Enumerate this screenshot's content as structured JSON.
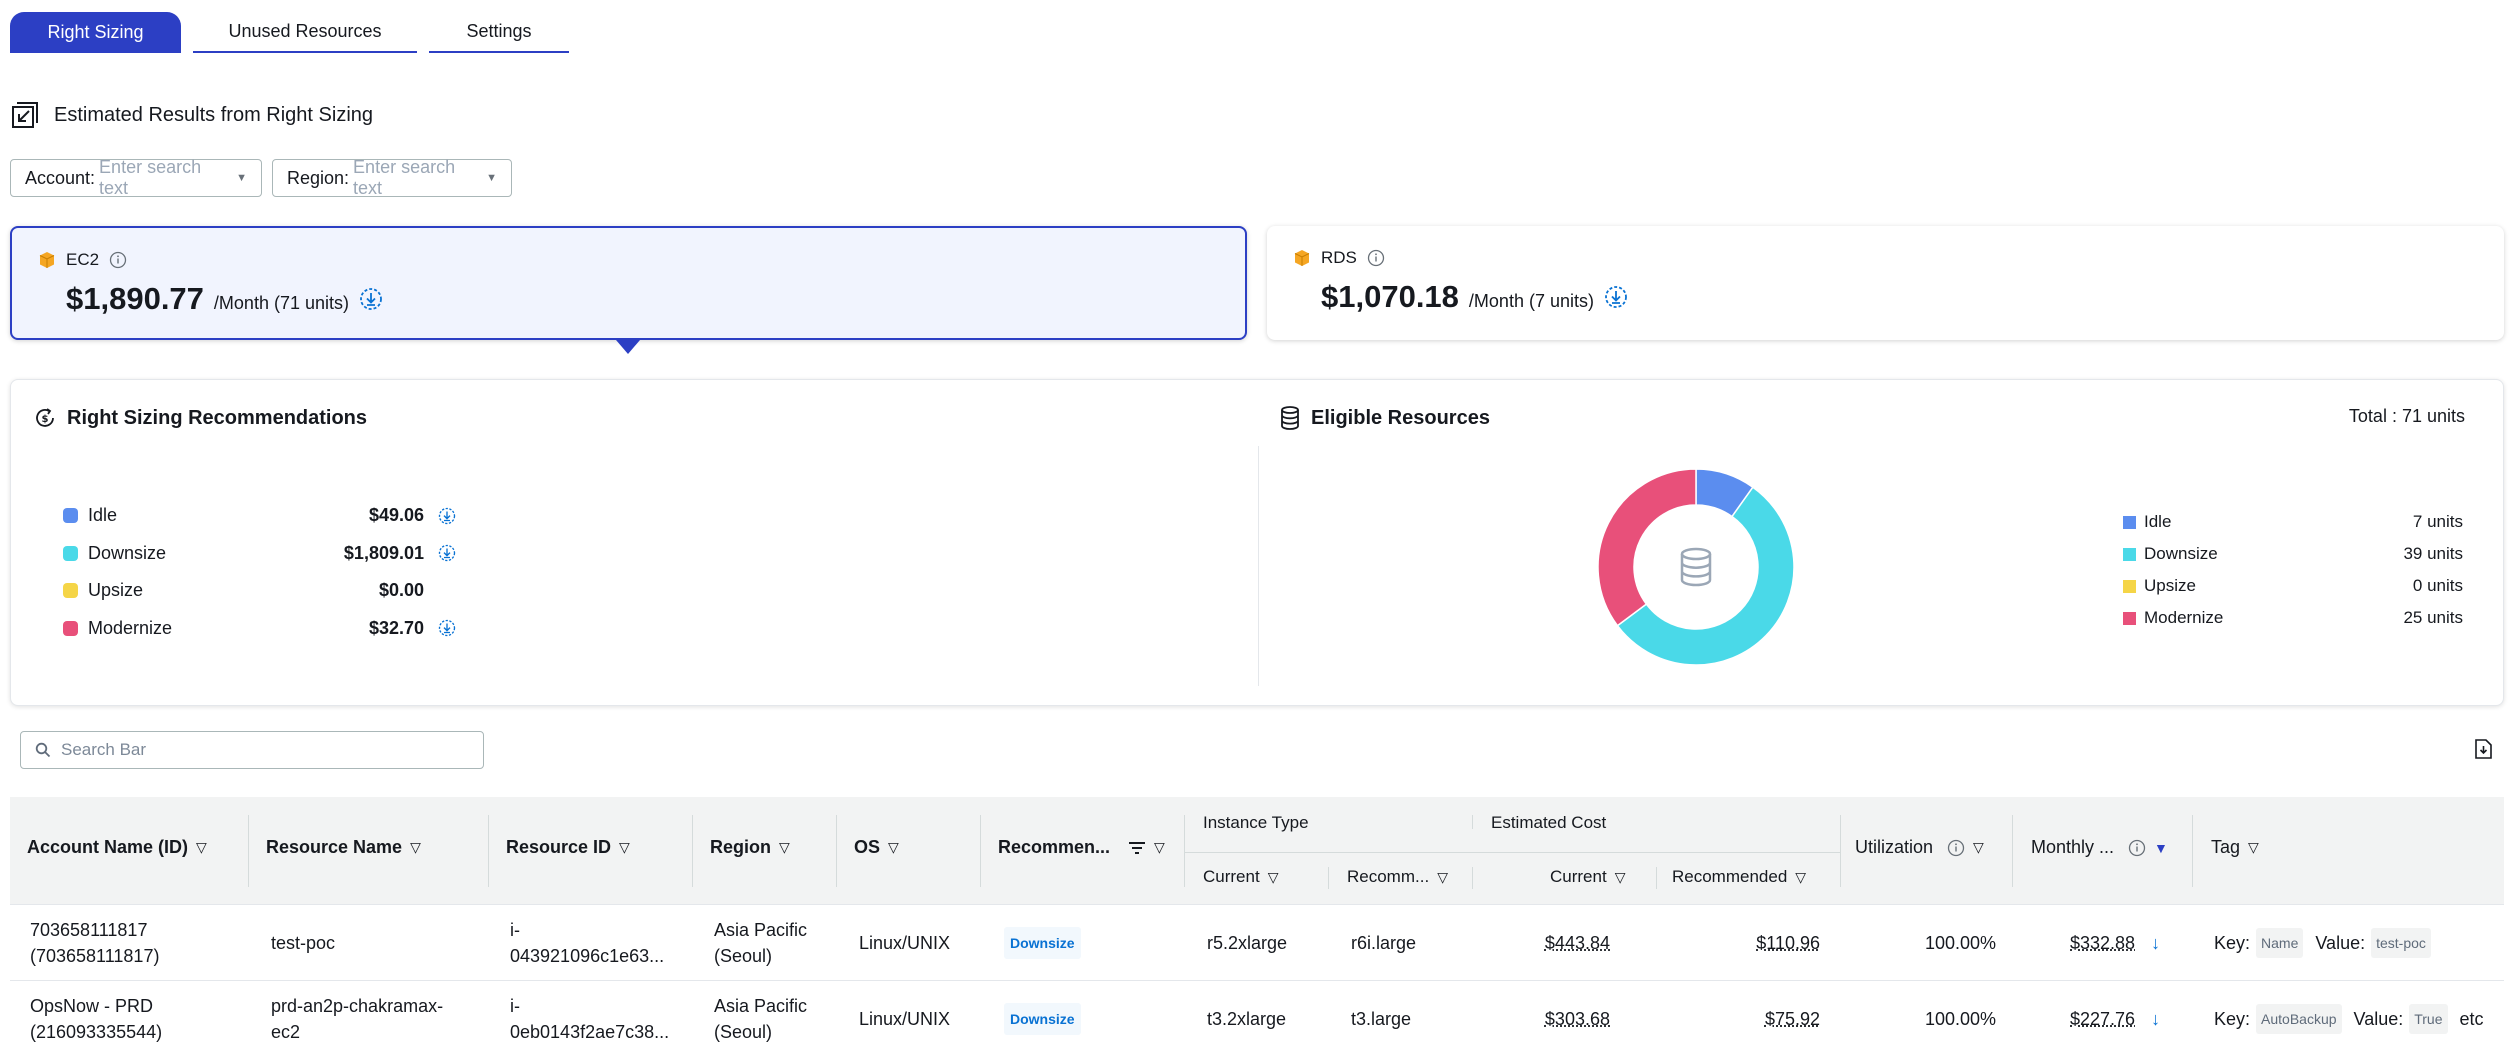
{
  "tabs": [
    {
      "label": "Right Sizing",
      "active": true
    },
    {
      "label": "Unused Resources",
      "active": false
    },
    {
      "label": "Settings",
      "active": false
    }
  ],
  "section": {
    "title": "Estimated Results from Right Sizing"
  },
  "filters": {
    "account": {
      "label": "Account:",
      "placeholder": "Enter search text"
    },
    "region": {
      "label": "Region:",
      "placeholder": "Enter search text"
    }
  },
  "cards": {
    "ec2": {
      "name": "EC2",
      "amount": "$1,890.77",
      "unit": "/Month (71 units)"
    },
    "rds": {
      "name": "RDS",
      "amount": "$1,070.18",
      "unit": "/Month (7 units)"
    }
  },
  "recommendations": {
    "title": "Right Sizing Recommendations",
    "items": [
      {
        "label": "Idle",
        "amount": "$49.06",
        "color": "#5b8def",
        "download": true
      },
      {
        "label": "Downsize",
        "amount": "$1,809.01",
        "color": "#4ad9e8",
        "download": true
      },
      {
        "label": "Upsize",
        "amount": "$0.00",
        "color": "#f5d547",
        "download": false
      },
      {
        "label": "Modernize",
        "amount": "$32.70",
        "color": "#e8507a",
        "download": true
      }
    ]
  },
  "eligible": {
    "title": "Eligible Resources",
    "total": "Total : 71 units",
    "items": [
      {
        "label": "Idle",
        "count": "7 units",
        "value": 7,
        "color": "#5b8def"
      },
      {
        "label": "Downsize",
        "count": "39 units",
        "value": 39,
        "color": "#4ad9e8"
      },
      {
        "label": "Upsize",
        "count": "0 units",
        "value": 0,
        "color": "#f5d547"
      },
      {
        "label": "Modernize",
        "count": "25 units",
        "value": 25,
        "color": "#e8507a"
      }
    ]
  },
  "search": {
    "placeholder": "Search Bar"
  },
  "table": {
    "headers": {
      "account": "Account Name (ID)",
      "resource_name": "Resource Name",
      "resource_id": "Resource ID",
      "region": "Region",
      "os": "OS",
      "recommendation": "Recommen...",
      "instance_type": "Instance Type",
      "it_current": "Current",
      "it_recommended": "Recomm...",
      "estimated_cost": "Estimated Cost",
      "ec_current": "Current",
      "ec_recommended": "Recommended",
      "utilization": "Utilization",
      "monthly": "Monthly ...",
      "tag": "Tag"
    },
    "rows": [
      {
        "account_name": "703658111817",
        "account_id": "(703658111817)",
        "resource_name": "test-poc",
        "resource_name_2": "",
        "resource_id": "i-",
        "resource_id_2": "043921096c1e63...",
        "region": "Asia Pacific",
        "region_2": "(Seoul)",
        "os": "Linux/UNIX",
        "recommendation": "Downsize",
        "it_current": "r5.2xlarge",
        "it_recommended": "r6i.large",
        "cost_current": "$443.84",
        "cost_recommended": "$110.96",
        "utilization": "100.00%",
        "monthly": "$332.88",
        "tag_key_label": "Key:",
        "tag_key": "Name",
        "tag_value_label": "Value:",
        "tag_value": "test-poc",
        "tag_extra": ""
      },
      {
        "account_name": "OpsNow - PRD",
        "account_id": "(216093335544)",
        "resource_name": "prd-an2p-chakramax-",
        "resource_name_2": "ec2",
        "resource_id": "i-",
        "resource_id_2": "0eb0143f2ae7c38...",
        "region": "Asia Pacific",
        "region_2": "(Seoul)",
        "os": "Linux/UNIX",
        "recommendation": "Downsize",
        "it_current": "t3.2xlarge",
        "it_recommended": "t3.large",
        "cost_current": "$303.68",
        "cost_recommended": "$75.92",
        "utilization": "100.00%",
        "monthly": "$227.76",
        "tag_key_label": "Key:",
        "tag_key": "AutoBackup",
        "tag_value_label": "Value:",
        "tag_value": "True",
        "tag_extra": "etc"
      }
    ]
  }
}
